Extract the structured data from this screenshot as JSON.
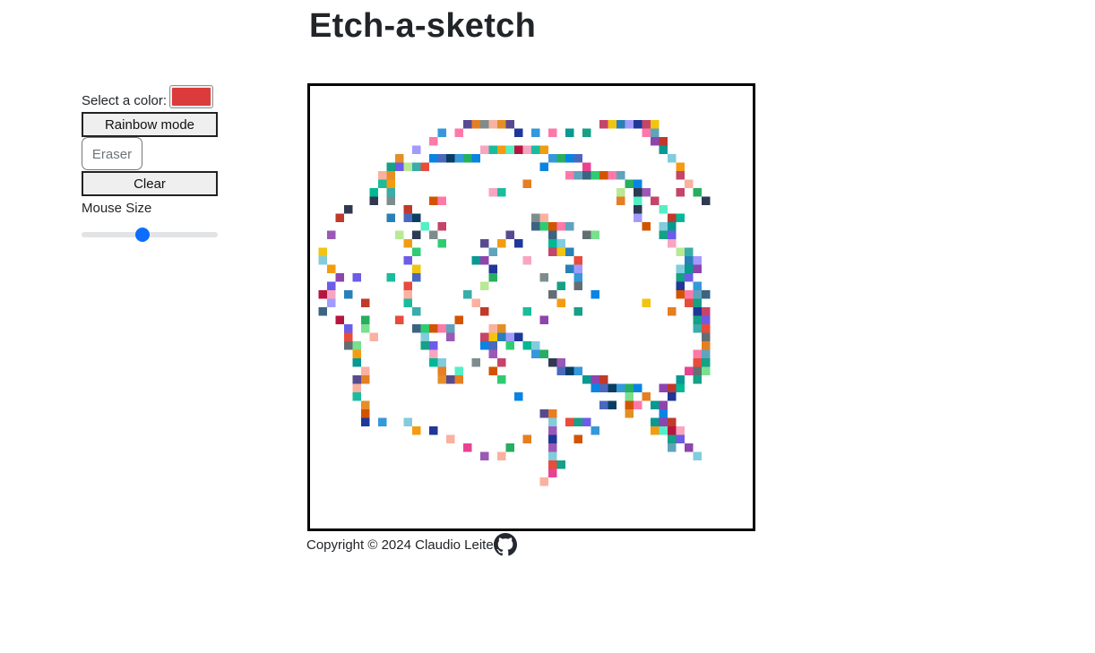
{
  "page": {
    "title": "Etch-a-sketch"
  },
  "controls": {
    "color_label": "Select a color:",
    "selected_color": "#dc3b3b",
    "rainbow_label": "Rainbow mode",
    "eraser_label": "Eraser",
    "clear_label": "Clear",
    "mouse_size_label": "Mouse Size",
    "mouse_size_value": 0.45
  },
  "board": {
    "grid_size": 52,
    "painted_cells": [
      [
        17,
        3
      ],
      [
        18,
        3
      ],
      [
        19,
        3
      ],
      [
        20,
        3
      ],
      [
        21,
        3
      ],
      [
        22,
        3
      ],
      [
        33,
        3
      ],
      [
        34,
        3
      ],
      [
        35,
        3
      ],
      [
        36,
        3
      ],
      [
        37,
        3
      ],
      [
        38,
        3
      ],
      [
        39,
        3
      ],
      [
        14,
        4
      ],
      [
        16,
        4
      ],
      [
        23,
        4
      ],
      [
        25,
        4
      ],
      [
        27,
        4
      ],
      [
        29,
        4
      ],
      [
        31,
        4
      ],
      [
        38,
        4
      ],
      [
        39,
        4
      ],
      [
        13,
        5
      ],
      [
        39,
        5
      ],
      [
        40,
        5
      ],
      [
        11,
        6
      ],
      [
        19,
        6
      ],
      [
        20,
        6
      ],
      [
        21,
        6
      ],
      [
        22,
        6
      ],
      [
        23,
        6
      ],
      [
        24,
        6
      ],
      [
        25,
        6
      ],
      [
        26,
        6
      ],
      [
        24,
        6
      ],
      [
        40,
        6
      ],
      [
        9,
        7
      ],
      [
        13,
        7
      ],
      [
        14,
        7
      ],
      [
        15,
        7
      ],
      [
        16,
        7
      ],
      [
        17,
        7
      ],
      [
        18,
        7
      ],
      [
        27,
        7
      ],
      [
        28,
        7
      ],
      [
        29,
        7
      ],
      [
        30,
        7
      ],
      [
        41,
        7
      ],
      [
        8,
        8
      ],
      [
        9,
        8
      ],
      [
        10,
        8
      ],
      [
        11,
        8
      ],
      [
        12,
        8
      ],
      [
        26,
        8
      ],
      [
        31,
        8
      ],
      [
        42,
        8
      ],
      [
        7,
        9
      ],
      [
        8,
        9
      ],
      [
        29,
        9
      ],
      [
        30,
        9
      ],
      [
        31,
        9
      ],
      [
        32,
        9
      ],
      [
        33,
        9
      ],
      [
        34,
        9
      ],
      [
        35,
        9
      ],
      [
        42,
        9
      ],
      [
        7,
        10
      ],
      [
        8,
        10
      ],
      [
        24,
        10
      ],
      [
        36,
        10
      ],
      [
        37,
        10
      ],
      [
        43,
        10
      ],
      [
        6,
        11
      ],
      [
        8,
        11
      ],
      [
        20,
        11
      ],
      [
        21,
        11
      ],
      [
        35,
        11
      ],
      [
        37,
        11
      ],
      [
        38,
        11
      ],
      [
        42,
        11
      ],
      [
        44,
        11
      ],
      [
        6,
        12
      ],
      [
        8,
        12
      ],
      [
        13,
        12
      ],
      [
        14,
        12
      ],
      [
        35,
        12
      ],
      [
        37,
        12
      ],
      [
        39,
        12
      ],
      [
        45,
        12
      ],
      [
        3,
        13
      ],
      [
        10,
        13
      ],
      [
        37,
        13
      ],
      [
        40,
        13
      ],
      [
        2,
        14
      ],
      [
        8,
        14
      ],
      [
        10,
        14
      ],
      [
        11,
        14
      ],
      [
        25,
        14
      ],
      [
        26,
        14
      ],
      [
        37,
        14
      ],
      [
        41,
        14
      ],
      [
        42,
        14
      ],
      [
        12,
        15
      ],
      [
        14,
        15
      ],
      [
        25,
        15
      ],
      [
        26,
        15
      ],
      [
        27,
        15
      ],
      [
        28,
        15
      ],
      [
        29,
        15
      ],
      [
        38,
        15
      ],
      [
        40,
        15
      ],
      [
        41,
        15
      ],
      [
        1,
        16
      ],
      [
        9,
        16
      ],
      [
        11,
        16
      ],
      [
        13,
        16
      ],
      [
        22,
        16
      ],
      [
        27,
        16
      ],
      [
        31,
        16
      ],
      [
        32,
        16
      ],
      [
        40,
        16
      ],
      [
        41,
        16
      ],
      [
        10,
        17
      ],
      [
        14,
        17
      ],
      [
        19,
        17
      ],
      [
        21,
        17
      ],
      [
        23,
        17
      ],
      [
        27,
        17
      ],
      [
        28,
        17
      ],
      [
        41,
        17
      ],
      [
        0,
        18
      ],
      [
        11,
        18
      ],
      [
        20,
        18
      ],
      [
        27,
        18
      ],
      [
        28,
        18
      ],
      [
        29,
        18
      ],
      [
        42,
        18
      ],
      [
        43,
        18
      ],
      [
        0,
        19
      ],
      [
        10,
        19
      ],
      [
        18,
        19
      ],
      [
        19,
        19
      ],
      [
        24,
        19
      ],
      [
        30,
        19
      ],
      [
        43,
        19
      ],
      [
        44,
        19
      ],
      [
        1,
        20
      ],
      [
        11,
        20
      ],
      [
        20,
        20
      ],
      [
        29,
        20
      ],
      [
        30,
        20
      ],
      [
        42,
        20
      ],
      [
        43,
        20
      ],
      [
        44,
        20
      ],
      [
        2,
        21
      ],
      [
        4,
        21
      ],
      [
        8,
        21
      ],
      [
        11,
        21
      ],
      [
        20,
        21
      ],
      [
        26,
        21
      ],
      [
        30,
        21
      ],
      [
        42,
        21
      ],
      [
        43,
        21
      ],
      [
        1,
        22
      ],
      [
        10,
        22
      ],
      [
        19,
        22
      ],
      [
        28,
        22
      ],
      [
        30,
        22
      ],
      [
        42,
        22
      ],
      [
        44,
        22
      ],
      [
        0,
        23
      ],
      [
        1,
        23
      ],
      [
        3,
        23
      ],
      [
        10,
        23
      ],
      [
        17,
        23
      ],
      [
        27,
        23
      ],
      [
        32,
        23
      ],
      [
        42,
        23
      ],
      [
        43,
        23
      ],
      [
        44,
        23
      ],
      [
        45,
        23
      ],
      [
        1,
        24
      ],
      [
        5,
        24
      ],
      [
        10,
        24
      ],
      [
        18,
        24
      ],
      [
        28,
        24
      ],
      [
        38,
        24
      ],
      [
        43,
        24
      ],
      [
        44,
        24
      ],
      [
        0,
        25
      ],
      [
        11,
        25
      ],
      [
        19,
        25
      ],
      [
        24,
        25
      ],
      [
        30,
        25
      ],
      [
        41,
        25
      ],
      [
        44,
        25
      ],
      [
        45,
        25
      ],
      [
        2,
        26
      ],
      [
        5,
        26
      ],
      [
        9,
        26
      ],
      [
        16,
        26
      ],
      [
        26,
        26
      ],
      [
        44,
        26
      ],
      [
        45,
        26
      ],
      [
        3,
        27
      ],
      [
        5,
        27
      ],
      [
        11,
        27
      ],
      [
        12,
        27
      ],
      [
        13,
        27
      ],
      [
        14,
        27
      ],
      [
        15,
        27
      ],
      [
        20,
        27
      ],
      [
        21,
        27
      ],
      [
        44,
        27
      ],
      [
        45,
        27
      ],
      [
        3,
        28
      ],
      [
        6,
        28
      ],
      [
        12,
        28
      ],
      [
        15,
        28
      ],
      [
        19,
        28
      ],
      [
        20,
        28
      ],
      [
        21,
        28
      ],
      [
        22,
        28
      ],
      [
        23,
        28
      ],
      [
        45,
        28
      ],
      [
        3,
        29
      ],
      [
        4,
        29
      ],
      [
        12,
        29
      ],
      [
        13,
        29
      ],
      [
        19,
        29
      ],
      [
        20,
        29
      ],
      [
        22,
        29
      ],
      [
        24,
        29
      ],
      [
        25,
        29
      ],
      [
        45,
        29
      ],
      [
        4,
        30
      ],
      [
        13,
        30
      ],
      [
        20,
        30
      ],
      [
        25,
        30
      ],
      [
        26,
        30
      ],
      [
        44,
        30
      ],
      [
        45,
        30
      ],
      [
        4,
        31
      ],
      [
        13,
        31
      ],
      [
        14,
        31
      ],
      [
        18,
        31
      ],
      [
        21,
        31
      ],
      [
        27,
        31
      ],
      [
        28,
        31
      ],
      [
        44,
        31
      ],
      [
        45,
        31
      ],
      [
        5,
        32
      ],
      [
        14,
        32
      ],
      [
        16,
        32
      ],
      [
        20,
        32
      ],
      [
        28,
        32
      ],
      [
        29,
        32
      ],
      [
        30,
        32
      ],
      [
        43,
        32
      ],
      [
        44,
        32
      ],
      [
        45,
        32
      ],
      [
        4,
        33
      ],
      [
        5,
        33
      ],
      [
        14,
        33
      ],
      [
        15,
        33
      ],
      [
        16,
        33
      ],
      [
        21,
        33
      ],
      [
        31,
        33
      ],
      [
        32,
        33
      ],
      [
        33,
        33
      ],
      [
        42,
        33
      ],
      [
        44,
        33
      ],
      [
        4,
        34
      ],
      [
        32,
        34
      ],
      [
        33,
        34
      ],
      [
        34,
        34
      ],
      [
        35,
        34
      ],
      [
        36,
        34
      ],
      [
        37,
        34
      ],
      [
        40,
        34
      ],
      [
        41,
        34
      ],
      [
        42,
        34
      ],
      [
        4,
        35
      ],
      [
        23,
        35
      ],
      [
        36,
        35
      ],
      [
        38,
        35
      ],
      [
        41,
        35
      ],
      [
        5,
        36
      ],
      [
        33,
        36
      ],
      [
        34,
        36
      ],
      [
        36,
        36
      ],
      [
        37,
        36
      ],
      [
        39,
        36
      ],
      [
        40,
        36
      ],
      [
        5,
        37
      ],
      [
        26,
        37
      ],
      [
        27,
        37
      ],
      [
        36,
        37
      ],
      [
        40,
        37
      ],
      [
        5,
        38
      ],
      [
        7,
        38
      ],
      [
        10,
        38
      ],
      [
        27,
        38
      ],
      [
        29,
        38
      ],
      [
        30,
        38
      ],
      [
        31,
        38
      ],
      [
        39,
        38
      ],
      [
        40,
        38
      ],
      [
        41,
        38
      ],
      [
        11,
        39
      ],
      [
        13,
        39
      ],
      [
        27,
        39
      ],
      [
        32,
        39
      ],
      [
        39,
        39
      ],
      [
        40,
        39
      ],
      [
        41,
        39
      ],
      [
        42,
        39
      ],
      [
        15,
        40
      ],
      [
        24,
        40
      ],
      [
        27,
        40
      ],
      [
        30,
        40
      ],
      [
        41,
        40
      ],
      [
        42,
        40
      ],
      [
        17,
        41
      ],
      [
        22,
        41
      ],
      [
        27,
        41
      ],
      [
        41,
        41
      ],
      [
        43,
        41
      ],
      [
        19,
        42
      ],
      [
        21,
        42
      ],
      [
        27,
        42
      ],
      [
        44,
        42
      ],
      [
        27,
        43
      ],
      [
        28,
        43
      ],
      [
        27,
        44
      ],
      [
        26,
        45
      ]
    ],
    "palette": [
      "#e74c3c",
      "#8e44ad",
      "#2ecc71",
      "#3498db",
      "#f1c40f",
      "#1abc9c",
      "#e67e22",
      "#9b59b6",
      "#16a085",
      "#c0392b",
      "#d35400",
      "#27ae60",
      "#2980b9",
      "#f39c12",
      "#7f8c8d",
      "#e84393",
      "#6c5ce7",
      "#00b894",
      "#fd79a8",
      "#0984e3",
      "#a29bfe",
      "#55efc4",
      "#fab1a0",
      "#636e72",
      "#b8e994",
      "#82ccdd",
      "#60a3bc",
      "#4a69bd",
      "#1e3799",
      "#b71540",
      "#e58e26",
      "#78e08f",
      "#38ada9",
      "#079992",
      "#3c6382",
      "#0a3d62",
      "#c44569",
      "#f8a5c2",
      "#574b90",
      "#303952"
    ]
  },
  "footer": {
    "copyright": "Copyright © 2024 Claudio Leite"
  }
}
